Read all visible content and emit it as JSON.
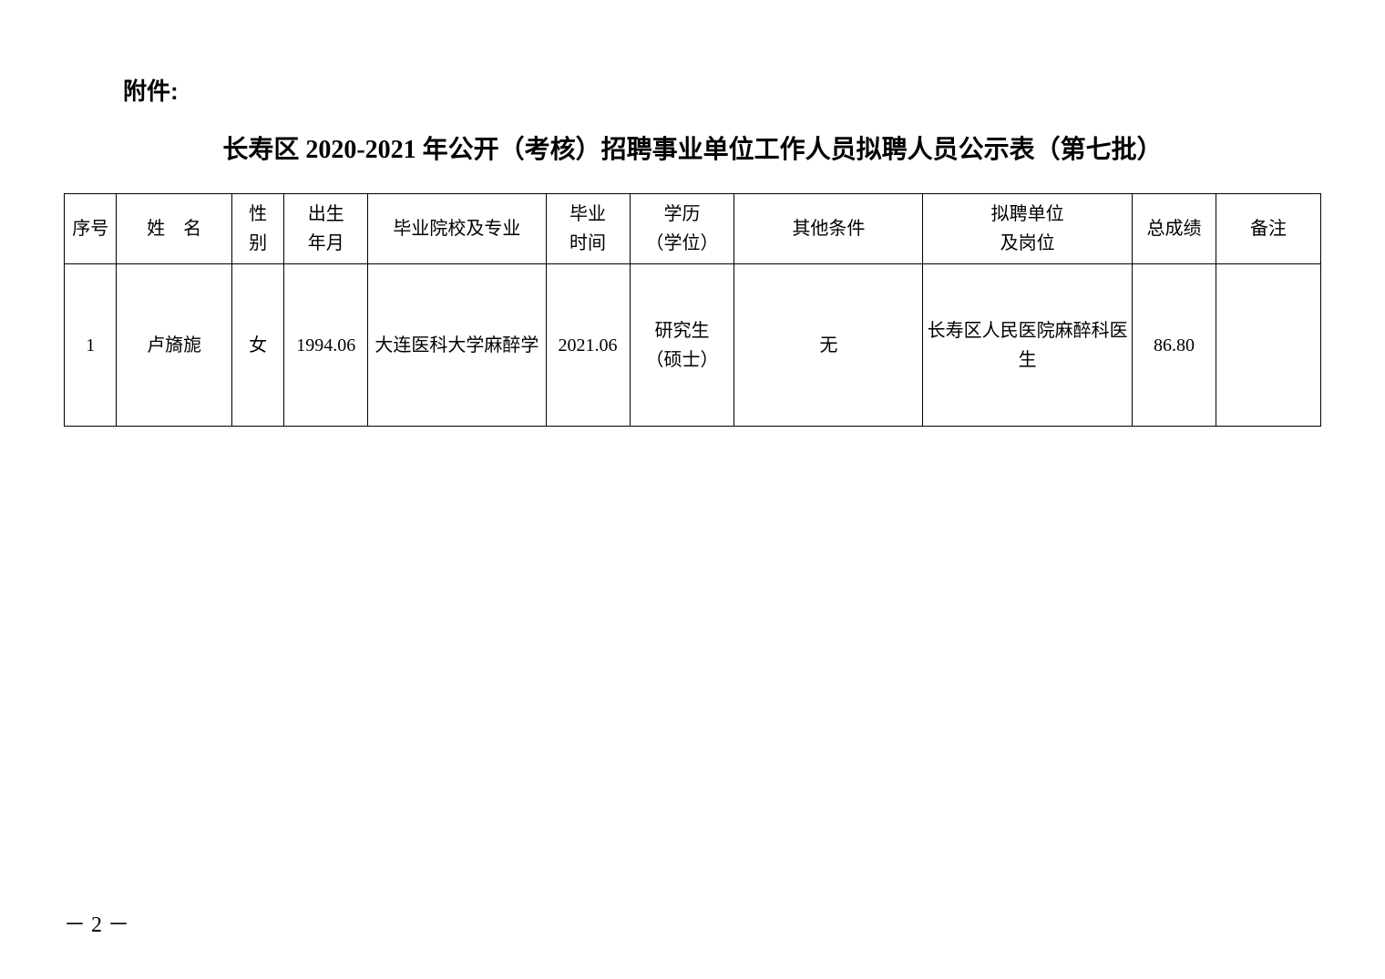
{
  "attachment_label": "附件:",
  "title": "长寿区 2020-2021 年公开（考核）招聘事业单位工作人员拟聘人员公示表（第七批）",
  "table": {
    "columns": [
      "序号",
      "姓　名",
      "性\n别",
      "出生\n年月",
      "毕业院校及专业",
      "毕业\n时间",
      "学历\n（学位）",
      "其他条件",
      "拟聘单位\n及岗位",
      "总成绩",
      "备注"
    ],
    "rows": [
      {
        "seq": "1",
        "name": "卢旖旎",
        "sex": "女",
        "birth": "1994.06",
        "school": "大连医科大学麻醉学",
        "grad": "2021.06",
        "edu": "研究生\n（硕士）",
        "other": "无",
        "unit": "长寿区人民医院麻醉科医生",
        "score": "86.80",
        "remark": ""
      }
    ]
  },
  "page_number": "－ 2 －"
}
